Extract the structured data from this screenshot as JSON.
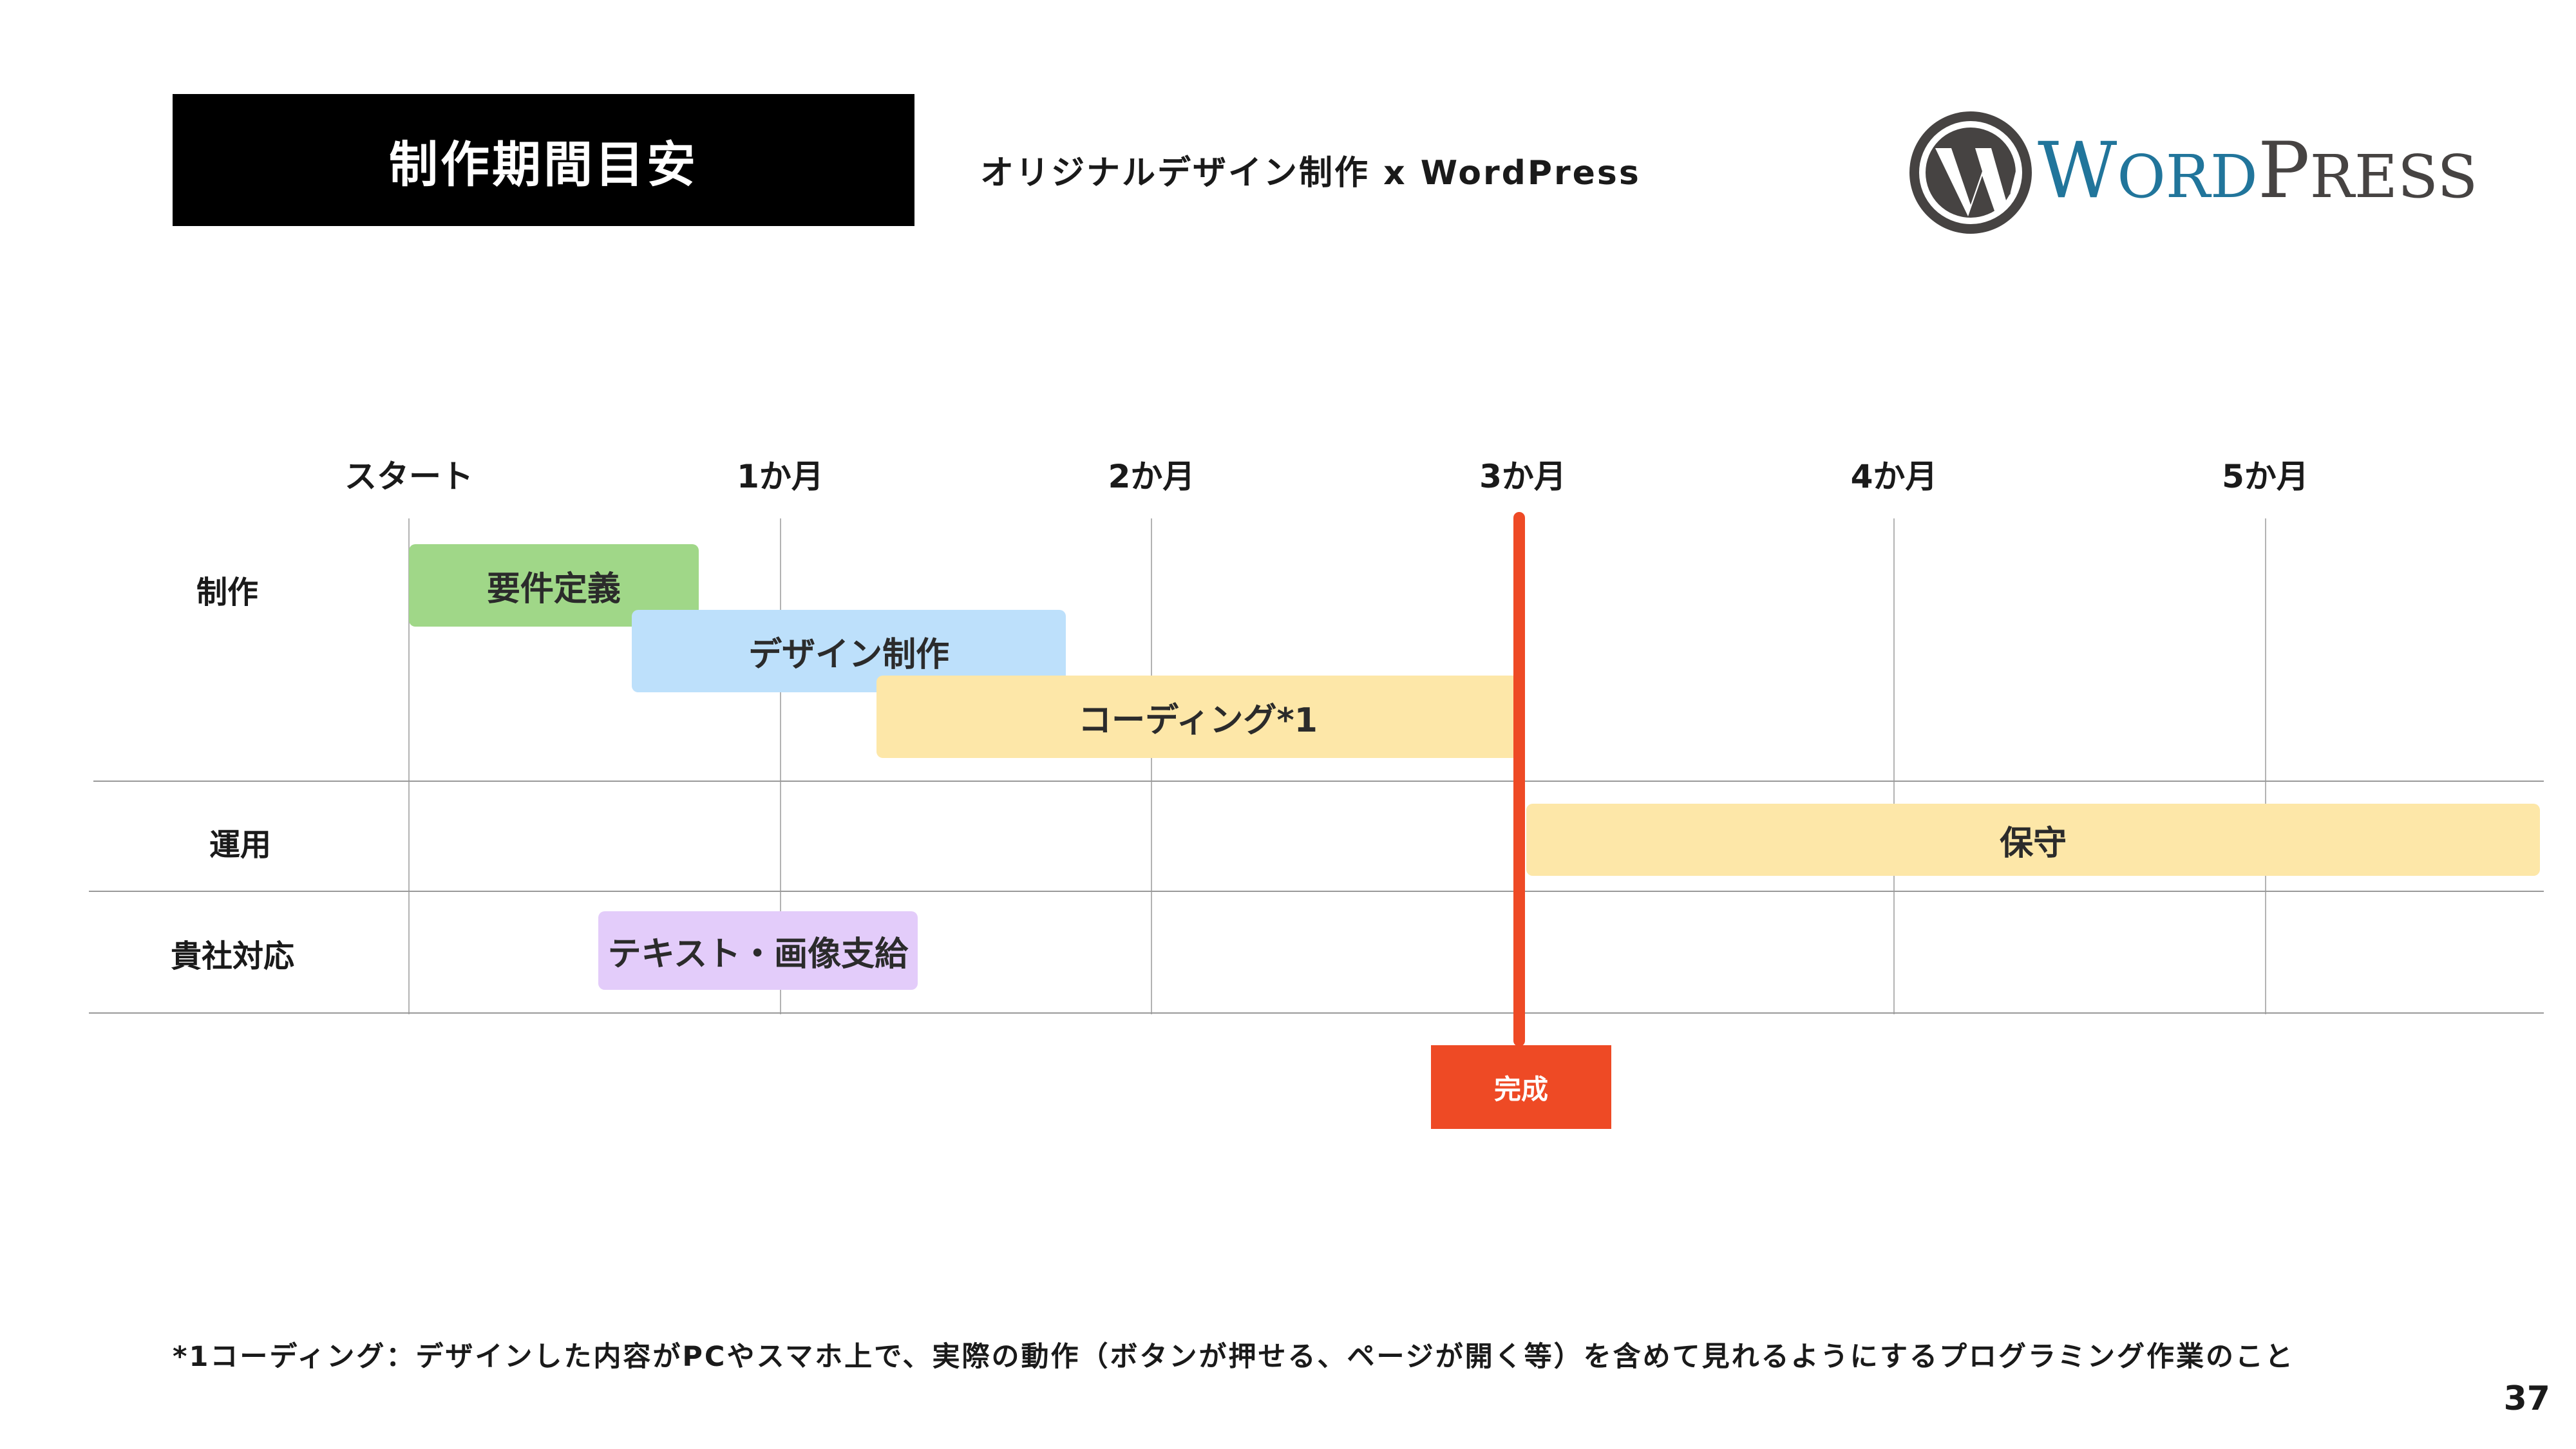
{
  "header": {
    "title": "制作期間目安",
    "subtitle": "オリジナルデザイン制作 x WordPress",
    "logo": {
      "name": "wordpress-logo",
      "text": "WORDPRESS",
      "color_blue": "#21759b",
      "color_grey": "#464342"
    }
  },
  "timeline": {
    "columns": [
      "スタート",
      "1か月",
      "2か月",
      "3か月",
      "4か月",
      "5か月"
    ],
    "rows": [
      "制作",
      "運用",
      "貴社対応"
    ]
  },
  "tasks": [
    {
      "label": "要件定義",
      "row": "制作",
      "start_month": 0,
      "end_month": 0.78,
      "color": "#a0d788"
    },
    {
      "label": "デザイン制作",
      "row": "制作",
      "start_month": 0.6,
      "end_month": 1.77,
      "color": "#bde0fb"
    },
    {
      "label": "コーディング*1",
      "row": "制作",
      "start_month": 1.26,
      "end_month": 2.99,
      "color": "#fde7a8"
    },
    {
      "label": "保守",
      "row": "運用",
      "start_month": 3.01,
      "end_month": 5.74,
      "color": "#fde7a8"
    },
    {
      "label": "テキスト・画像支給",
      "row": "貴社対応",
      "start_month": 0.51,
      "end_month": 1.37,
      "color": "#e3ccfa"
    }
  ],
  "milestone": {
    "label": "完成",
    "month": 3,
    "color": "#ee4a25"
  },
  "footnote": "*1コーディング：デザインした内容がPCやスマホ上で、実際の動作（ボタンが押せる、ページが開く等）を含めて見れるようにするプログラミング作業のこと",
  "page_number": "37"
}
